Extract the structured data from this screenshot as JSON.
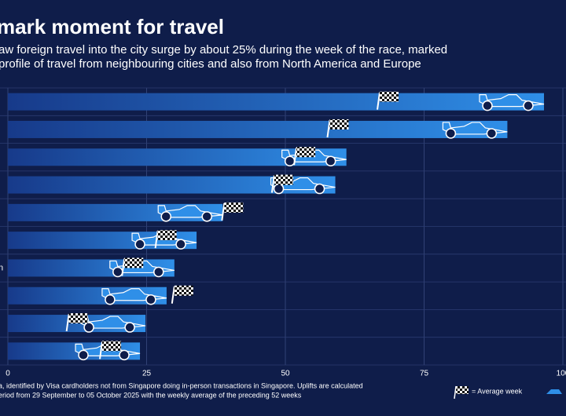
{
  "chart_data": {
    "type": "bar",
    "orientation": "horizontal",
    "title": "mark moment for travel",
    "subtitle": [
      "aw foreign travel into the city surge by about 25% during the week of the race, marked",
      "profile of travel from neighbouring cities and also from North America and Europe"
    ],
    "categories": [
      null,
      null,
      null,
      null,
      null,
      null,
      "n",
      null,
      null,
      null
    ],
    "series": [
      {
        "color": "#2f8fe8",
        "values": [
          96.6,
          90,
          61,
          59,
          38.7,
          34,
          30,
          28.6,
          24.8,
          23.8
        ]
      },
      {
        "name": "= Average week",
        "color": "#ffffff",
        "values": [
          67,
          58,
          52,
          48,
          39,
          27,
          21,
          30,
          11,
          17
        ]
      }
    ],
    "xlim": [
      0,
      100
    ],
    "xticks": [
      0,
      25,
      50,
      75,
      100
    ],
    "grid": true,
    "footnote": [
      "a, identified by Visa cardholders not from Singapore doing in-person transactions in Singapore. Uplifts are calculated",
      "eriod from 29 September to 05 October 2025 with the weekly average of the preceding 52 weeks"
    ]
  }
}
